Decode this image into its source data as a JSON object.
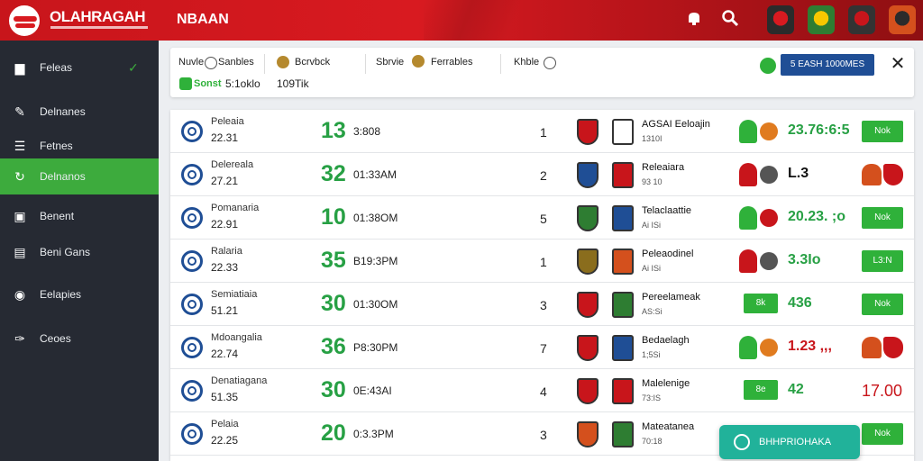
{
  "header": {
    "brand": "OLAHRAGAH",
    "title": "NBAAN",
    "icons": [
      "notification-icon",
      "search-icon"
    ],
    "clubs": [
      {
        "color": "#2b2b2b",
        "accent": "#d81a20"
      },
      {
        "color": "#2e7d32",
        "accent": "#f6c700"
      },
      {
        "color": "#333333",
        "accent": "#c8151b"
      },
      {
        "color": "#d4501d",
        "accent": "#2b2b2b"
      }
    ]
  },
  "sidebar": {
    "items": [
      {
        "label": "Feleas",
        "icon": "trophy-icon",
        "glyph": "▆",
        "extra": "✓"
      },
      {
        "label": "Delnanes",
        "icon": "sport-icon",
        "glyph": "✎"
      },
      {
        "label": "Fetnes",
        "icon": "list-icon",
        "glyph": "☰"
      },
      {
        "label": "Delnanos",
        "icon": "refresh-icon",
        "glyph": "↻",
        "active": true
      },
      {
        "label": "Benent",
        "icon": "bookmark-icon",
        "glyph": "▣"
      },
      {
        "label": "Beni Gans",
        "icon": "document-icon",
        "glyph": "▤"
      },
      {
        "label": "Eelapies",
        "icon": "circle-icon",
        "glyph": "◉"
      },
      {
        "label": "Ceoes",
        "icon": "link-icon",
        "glyph": "✑"
      }
    ]
  },
  "filters": {
    "f1": "Nuvle",
    "f1b": "Sanbles",
    "f2": "Bcrvbck",
    "f3": "Sbrvie",
    "f3b": "Ferrables",
    "f4": "Khble",
    "sub1": "Sonst",
    "sub1b": "5:1oklo",
    "sub2": "109Tik",
    "button": "5 EASH 1000MES"
  },
  "rows": [
    {
      "name": "Peleaia",
      "val": "22.31",
      "score": "13",
      "time": "3:808",
      "rank": "1",
      "team": "AGSAI Eeloajin",
      "team_sub": "1310I",
      "odds": "23.76:6:5",
      "odds_color": "#27a044",
      "right": "btn",
      "right_label": "Nok",
      "c1": "#c8151b",
      "c2": "#ffffff",
      "i1": "#2fb13a",
      "i2": "#e07b1f"
    },
    {
      "name": "Delereala",
      "val": "27.21",
      "score": "32",
      "time": "01:33AM",
      "rank": "2",
      "team": "Releaiara",
      "team_sub": "93 10",
      "odds": "L.3",
      "odds_color": "#111111",
      "right": "icons",
      "c1": "#1f4e95",
      "c2": "#c8151b",
      "i1": "#c8151b",
      "i2": "#555555"
    },
    {
      "name": "Pomanaria",
      "val": "22.91",
      "score": "10",
      "time": "01:38OM",
      "rank": "5",
      "team": "Telaclaattie",
      "team_sub": "Ai ISi",
      "odds": "20.23. ;o",
      "odds_color": "#27a044",
      "right": "btn",
      "right_label": "Nok",
      "c1": "#2e7d32",
      "c2": "#1f4e95",
      "i1": "#2fb13a",
      "i2": "#c8151b"
    },
    {
      "name": "Ralaria",
      "val": "22.33",
      "score": "35",
      "time": "B19:3PM",
      "rank": "1",
      "team": "Peleaodinel",
      "team_sub": "Ai ISi",
      "odds": "3.3Io",
      "odds_color": "#27a044",
      "right": "btn",
      "right_label": "L3:N",
      "c1": "#8a6d1d",
      "c2": "#d4501d",
      "i1": "#c8151b",
      "i2": "#555555"
    },
    {
      "name": "Semiatiaia",
      "val": "51.21",
      "score": "30",
      "time": "01:30OM",
      "rank": "3",
      "team": "Pereelameak",
      "team_sub": "AS:Si",
      "odds": "436",
      "odds_color": "#27a044",
      "right": "btn",
      "right_label": "Nok",
      "c1": "#c8151b",
      "c2": "#2e7d32",
      "mini": "8k",
      "i1": "",
      "i2": ""
    },
    {
      "name": "Mdoangalia",
      "val": "22.74",
      "score": "36",
      "time": "P8:30PM",
      "rank": "7",
      "team": "Bedaelagh",
      "team_sub": "1;5Si",
      "odds": "1.23 ,,,",
      "odds_color": "#c8151b",
      "right": "icons",
      "c1": "#c8151b",
      "c2": "#1f4e95",
      "i1": "#2fb13a",
      "i2": "#e07b1f"
    },
    {
      "name": "Denatiagana",
      "val": "51.35",
      "score": "30",
      "time": "0E:43AI",
      "rank": "4",
      "team": "Malelenige",
      "team_sub": "73:IS",
      "odds": "42",
      "odds_color": "#27a044",
      "right": "big",
      "big": "17.00",
      "c1": "#c8151b",
      "c2": "#c8151b",
      "mini": "8e",
      "i1": "",
      "i2": ""
    },
    {
      "name": "Pelaia",
      "val": "22.25",
      "score": "20",
      "time": "0:3.3PM",
      "rank": "3",
      "team": "Mateatanea",
      "team_sub": "70:18",
      "odds": "",
      "odds_color": "#27a044",
      "right": "btn",
      "right_label": "Nok",
      "c1": "#d4501d",
      "c2": "#2e7d32",
      "i1": "",
      "i2": ""
    }
  ],
  "float_button": "BHHPRIOHAKA"
}
